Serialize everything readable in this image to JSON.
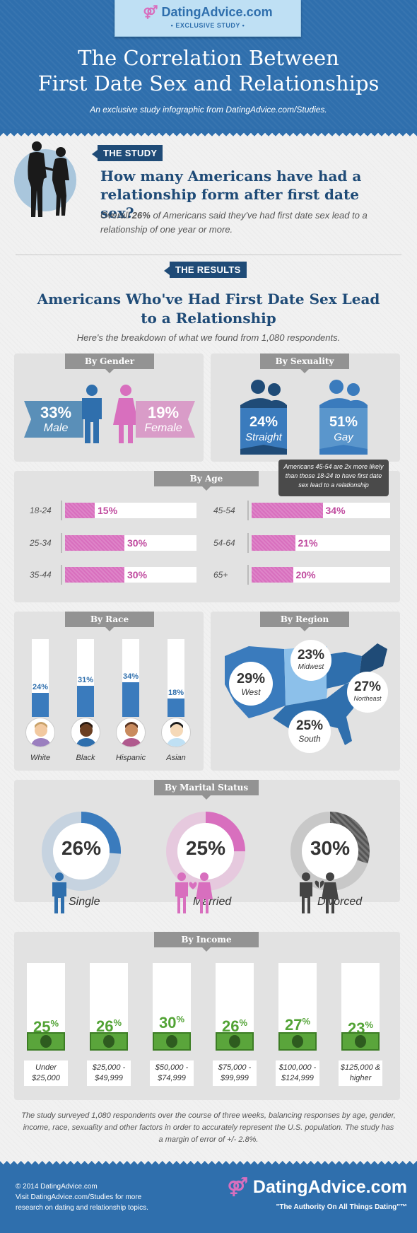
{
  "header": {
    "logo": "DatingAdvice.com",
    "badge": "• EXCLUSIVE STUDY •",
    "title_line1": "The Correlation Between",
    "title_line2": "First Date Sex and Relationships",
    "subtitle": "An exclusive study infographic from DatingAdvice.com/Studies."
  },
  "study": {
    "tag": "THE STUDY",
    "question": "How many Americans have had a relationship form after first date sex?",
    "text_pre": "Overall ",
    "text_pct": "26%",
    "text_post": " of Americans said they've had first date sex lead to a relationship of one year or more."
  },
  "results": {
    "tag": "THE RESULTS",
    "title": "Americans Who've Had First Date Sex Lead to a Relationship",
    "subtitle": "Here's the breakdown of what we found from 1,080 respondents."
  },
  "gender": {
    "tab": "By Gender",
    "male": {
      "value": "33%",
      "label": "Male"
    },
    "female": {
      "value": "19%",
      "label": "Female"
    }
  },
  "sexuality": {
    "tab": "By Sexuality",
    "straight": {
      "value": "24%",
      "label": "Straight"
    },
    "gay": {
      "value": "51%",
      "label": "Gay"
    }
  },
  "age": {
    "tab": "By Age",
    "callout": "Americans 45-54 are 2x more likely than those 18-24 to have first date sex lead to a relationship",
    "groups": [
      {
        "label": "18-24",
        "value": 15
      },
      {
        "label": "25-34",
        "value": 30
      },
      {
        "label": "35-44",
        "value": 30
      },
      {
        "label": "45-54",
        "value": 34
      },
      {
        "label": "54-64",
        "value": 21
      },
      {
        "label": "65+",
        "value": 20
      }
    ]
  },
  "race": {
    "tab": "By Race",
    "groups": [
      {
        "label": "White",
        "value": 24
      },
      {
        "label": "Black",
        "value": 31
      },
      {
        "label": "Hispanic",
        "value": 34
      },
      {
        "label": "Asian",
        "value": 18
      }
    ]
  },
  "region": {
    "tab": "By Region",
    "west": {
      "value": "29%",
      "label": "West"
    },
    "midwest": {
      "value": "23%",
      "label": "Midwest"
    },
    "northeast": {
      "value": "27%",
      "label": "Northeast"
    },
    "south": {
      "value": "25%",
      "label": "South"
    }
  },
  "marital": {
    "tab": "By Marital Status",
    "groups": [
      {
        "label": "Single",
        "value": 26,
        "display": "26%",
        "color": "#3a7bbd"
      },
      {
        "label": "Married",
        "value": 25,
        "display": "25%",
        "color": "#d86fbe"
      },
      {
        "label": "Divorced",
        "value": 30,
        "display": "30%",
        "color": "#555555"
      }
    ]
  },
  "income": {
    "tab": "By Income",
    "groups": [
      {
        "line1": "Under",
        "line2": "$25,000",
        "value": 25
      },
      {
        "line1": "$25,000 -",
        "line2": "$49,999",
        "value": 26
      },
      {
        "line1": "$50,000 -",
        "line2": "$74,999",
        "value": 30
      },
      {
        "line1": "$75,000 -",
        "line2": "$99,999",
        "value": 26
      },
      {
        "line1": "$100,000 -",
        "line2": "$124,999",
        "value": 27
      },
      {
        "line1": "$125,000 &",
        "line2": "higher",
        "value": 23
      }
    ]
  },
  "footer": {
    "note": "The study surveyed 1,080 respondents over the course of three weeks, balancing responses by age, gender, income, race, sexuality and other factors in order to accurately represent the U.S. population. The study has a margin of error of +/- 2.8%.",
    "copyright": "© 2014 DatingAdvice.com",
    "visit_line1": "Visit DatingAdvice.com/Studies for more",
    "visit_line2": "research on dating and relationship topics.",
    "logo": "DatingAdvice.com",
    "tagline": "\"The Authority On All Things Dating\"™"
  },
  "colors": {
    "blue": "#2f6fad",
    "navy": "#1f4b77",
    "pink": "#d86fbe",
    "green": "#52a335"
  }
}
